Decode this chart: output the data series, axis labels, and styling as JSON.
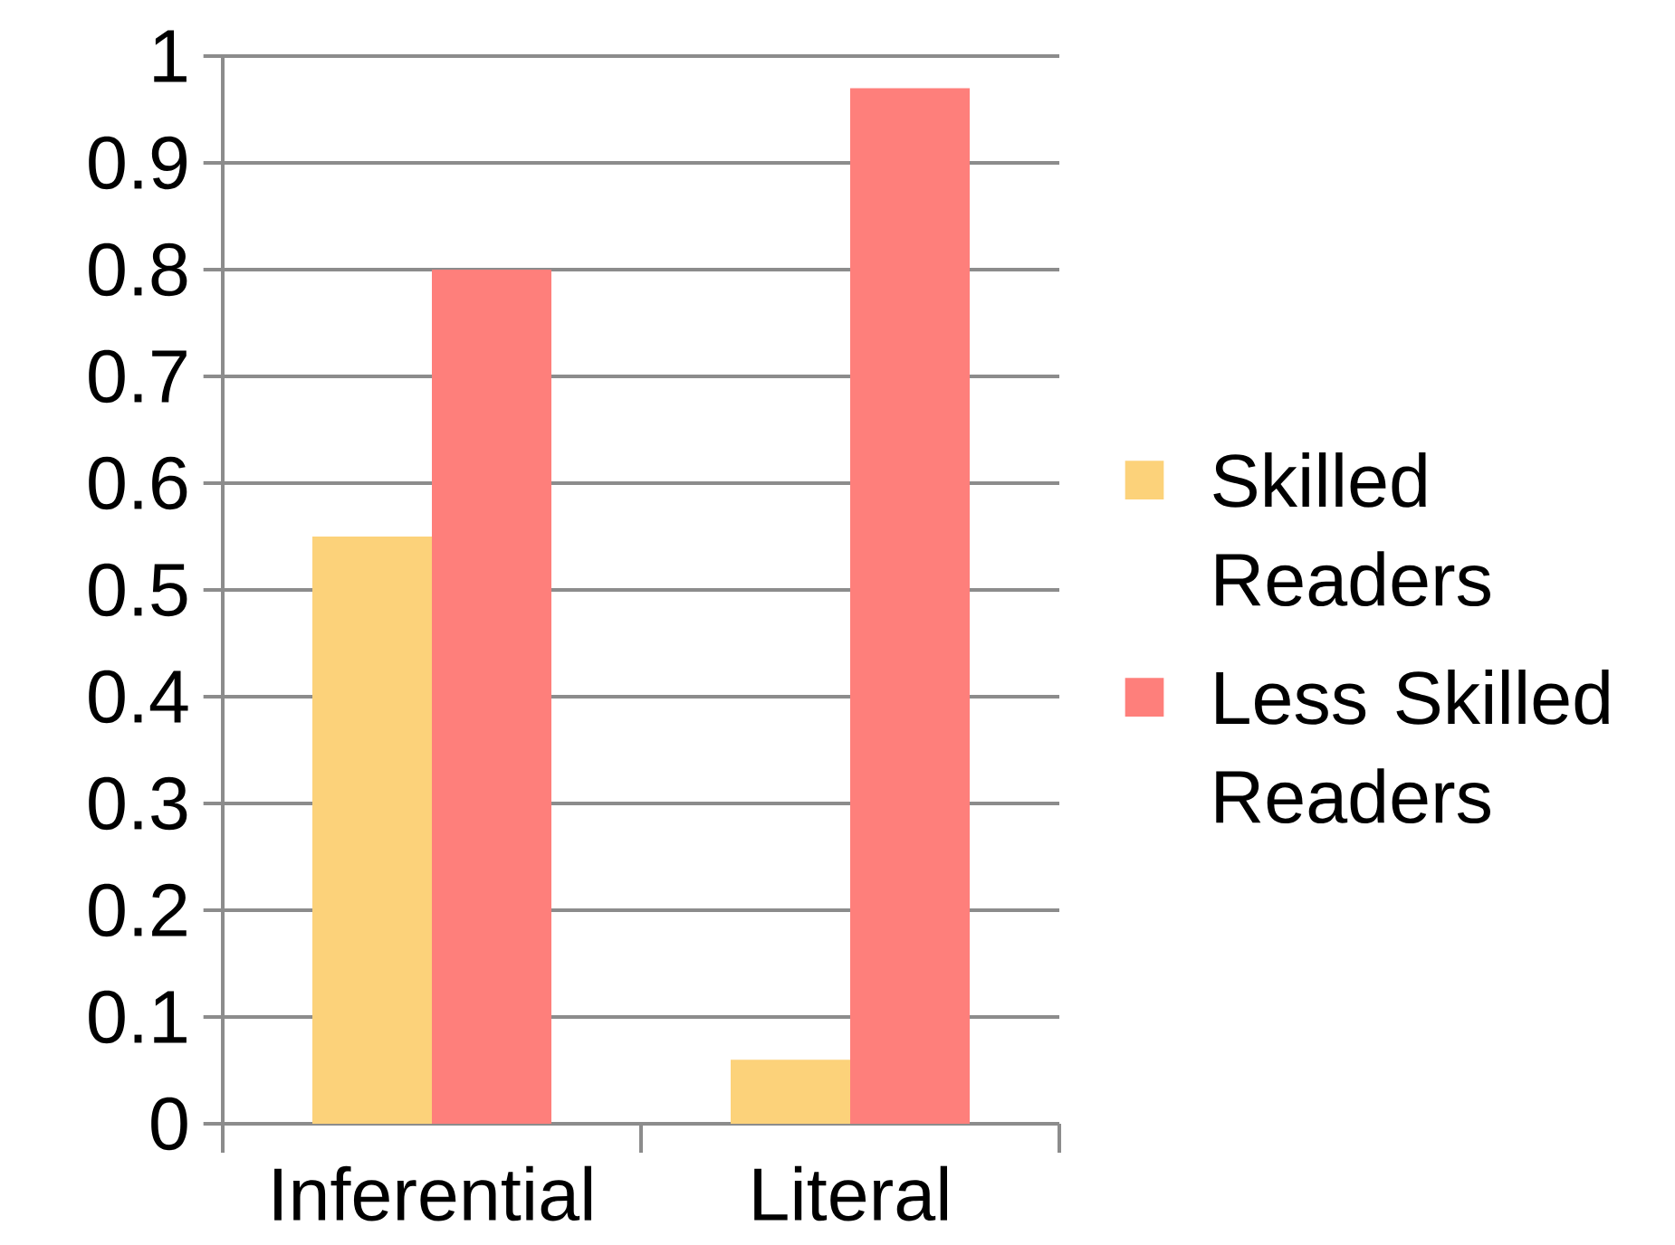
{
  "chart_data": {
    "type": "bar",
    "categories": [
      "Inferential",
      "Literal"
    ],
    "series": [
      {
        "name": "Skilled Readers",
        "color": "#fcd27a",
        "values": [
          0.55,
          0.06
        ]
      },
      {
        "name": "Less Skilled Readers",
        "color": "#fe7f7b",
        "values": [
          0.8,
          0.97
        ]
      }
    ],
    "ylim": [
      0,
      1
    ],
    "yticks": [
      0,
      0.1,
      0.2,
      0.3,
      0.4,
      0.5,
      0.6,
      0.7,
      0.8,
      0.9,
      1
    ],
    "grid": "y",
    "legend": "right"
  }
}
